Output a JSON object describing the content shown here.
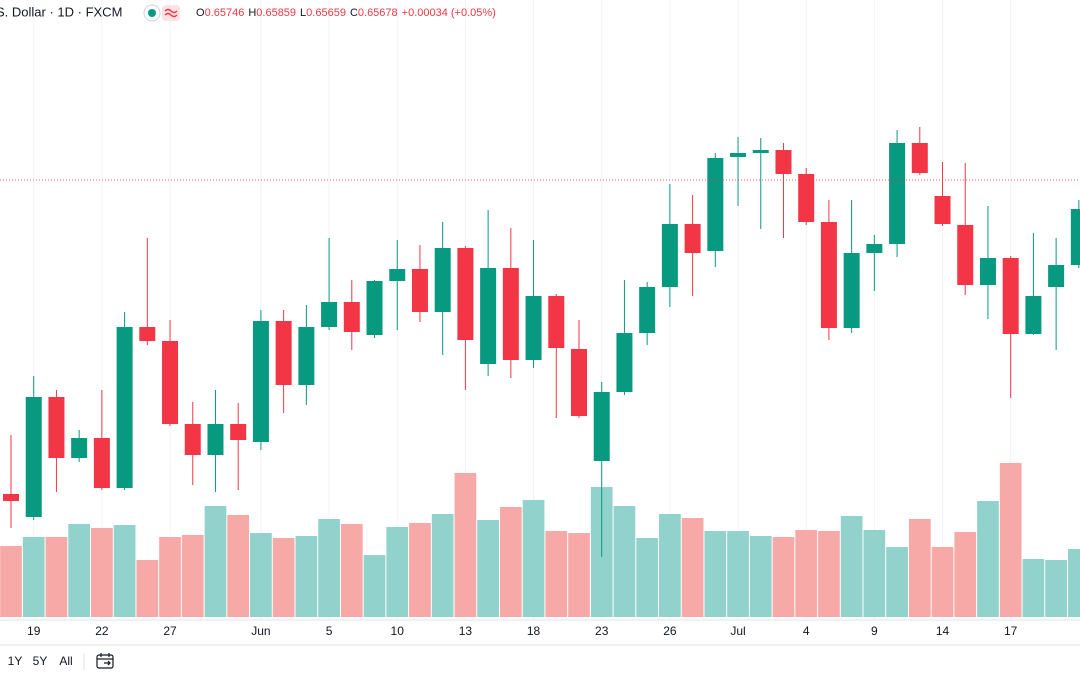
{
  "header": {
    "symbol": "S. Dollar · 1D · FXCM",
    "ohlc": [
      {
        "label": "O",
        "value": "0.65746"
      },
      {
        "label": "H",
        "value": "0.65859"
      },
      {
        "label": "L",
        "value": "0.65659"
      },
      {
        "label": "C",
        "value": "0.65678"
      }
    ],
    "change": "+0.00034 (+0.05%)"
  },
  "toolbar": {
    "ranges": [
      "1Y",
      "5Y",
      "All"
    ]
  },
  "chart_data": {
    "type": "candlestick",
    "categories": [
      null,
      "19",
      null,
      null,
      "22",
      null,
      null,
      "27",
      null,
      null,
      null,
      "Jun",
      null,
      null,
      "5",
      null,
      null,
      "10",
      null,
      null,
      "13",
      null,
      null,
      "18",
      null,
      null,
      "23",
      null,
      null,
      "26",
      null,
      null,
      "Jul",
      null,
      null,
      "4",
      null,
      null,
      "9",
      null,
      null,
      "14",
      null,
      null,
      "17",
      null,
      null,
      null
    ],
    "open": [
      0.6411,
      0.63995,
      0.64595,
      0.6429,
      0.6439,
      0.6414,
      0.64945,
      0.64875,
      0.6446,
      0.64305,
      0.6446,
      0.6437,
      0.64975,
      0.64655,
      0.64945,
      0.6507,
      0.64905,
      0.65175,
      0.65235,
      0.6502,
      0.6534,
      0.6476,
      0.6524,
      0.6478,
      0.651,
      0.64835,
      0.64275,
      0.6462,
      0.64915,
      0.65145,
      0.6546,
      0.65325,
      0.65795,
      0.65815,
      0.6583,
      0.6571,
      0.6547,
      0.6494,
      0.65315,
      0.6536,
      0.65865,
      0.656,
      0.65455,
      0.65155,
      0.6529,
      0.6491,
      0.65145,
      0.65255
    ],
    "high": [
      0.64405,
      0.647,
      0.6463,
      0.6443,
      0.6463,
      0.6502,
      0.6539,
      0.6498,
      0.6457,
      0.6463,
      0.64565,
      0.6503,
      0.6503,
      0.65055,
      0.6539,
      0.6518,
      0.6518,
      0.6538,
      0.65355,
      0.6547,
      0.6535,
      0.6553,
      0.6544,
      0.6538,
      0.6511,
      0.6498,
      0.6467,
      0.6518,
      0.6517,
      0.6566,
      0.65605,
      0.65815,
      0.65895,
      0.6589,
      0.65865,
      0.6574,
      0.6558,
      0.6558,
      0.65405,
      0.6593,
      0.65945,
      0.6577,
      0.65765,
      0.6555,
      0.653,
      0.65415,
      0.6539,
      0.6558
    ],
    "low": [
      0.6394,
      0.6398,
      0.6412,
      0.6427,
      0.6413,
      0.6413,
      0.64855,
      0.6445,
      0.64155,
      0.6412,
      0.6413,
      0.6433,
      0.64515,
      0.64555,
      0.6493,
      0.6483,
      0.6489,
      0.6493,
      0.6497,
      0.64805,
      0.6463,
      0.647,
      0.6469,
      0.6474,
      0.6449,
      0.6449,
      0.63795,
      0.64605,
      0.64855,
      0.65045,
      0.651,
      0.65245,
      0.6555,
      0.65435,
      0.6539,
      0.65455,
      0.6488,
      0.64915,
      0.65125,
      0.65295,
      0.65705,
      0.6545,
      0.65105,
      0.64985,
      0.6459,
      0.64905,
      0.6483,
      0.6524
    ],
    "close": [
      0.64075,
      0.64595,
      0.6429,
      0.6439,
      0.6414,
      0.64945,
      0.64875,
      0.6446,
      0.64305,
      0.6446,
      0.6438,
      0.64975,
      0.64655,
      0.64945,
      0.6507,
      0.6492,
      0.65175,
      0.65235,
      0.6502,
      0.6534,
      0.6488,
      0.6524,
      0.6478,
      0.651,
      0.6484,
      0.645,
      0.6462,
      0.64915,
      0.65145,
      0.6546,
      0.65315,
      0.6579,
      0.65815,
      0.6583,
      0.6571,
      0.6547,
      0.6494,
      0.65315,
      0.6536,
      0.65865,
      0.65715,
      0.6546,
      0.65155,
      0.6529,
      0.6491,
      0.651,
      0.65255,
      0.65535
    ],
    "volume": [
      71,
      80,
      80,
      93,
      89,
      92,
      57,
      80,
      82,
      111,
      102,
      84,
      79,
      81,
      98,
      93,
      62,
      90,
      94,
      103,
      144,
      97,
      110,
      117,
      86,
      84,
      130,
      111,
      79,
      103,
      99,
      86,
      86,
      81,
      80,
      87,
      86,
      101,
      87,
      70,
      98,
      70,
      85,
      116,
      154,
      58,
      57,
      68
    ],
    "ylim": [
      0.63495,
      0.6658
    ],
    "volume_lim": [
      0,
      617
    ],
    "price_line": 0.6568,
    "up_color": "#089981",
    "down_color": "#f23645",
    "volume_up_color": "#92d2cc",
    "volume_down_color": "#f7a9a7"
  }
}
